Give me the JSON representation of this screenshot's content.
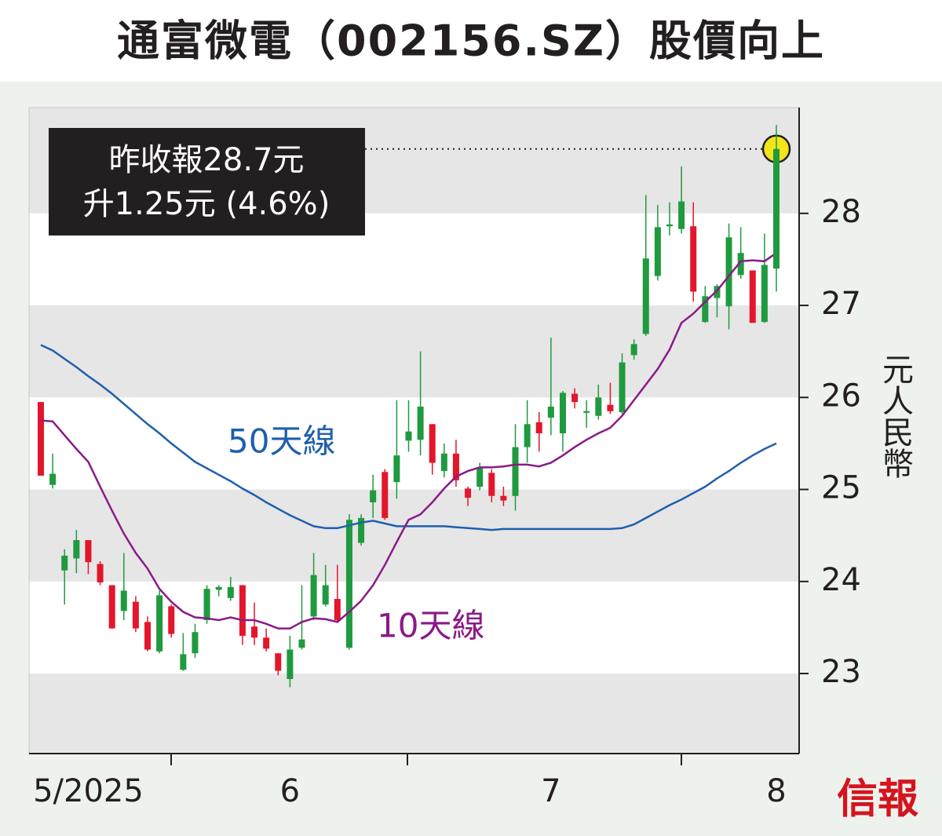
{
  "chart_data": {
    "type": "candlestick",
    "title": "通富微電（002156.SZ）股價向上",
    "annotation": [
      "昨收報28.7元",
      "升1.25元 (4.6%)"
    ],
    "ylabel": "元人民幣",
    "source": "信報",
    "categories": [
      null,
      null,
      null,
      null,
      "5/2025",
      null,
      null,
      null,
      null,
      null,
      null,
      null,
      null,
      null,
      null,
      null,
      null,
      null,
      null,
      null,
      null,
      "6",
      null,
      null,
      null,
      null,
      null,
      null,
      null,
      null,
      null,
      null,
      null,
      null,
      null,
      null,
      null,
      null,
      null,
      null,
      null,
      null,
      null,
      "7",
      null,
      null,
      null,
      null,
      null,
      null,
      null,
      null,
      null,
      null,
      null,
      null,
      null,
      null,
      null,
      null,
      null,
      null,
      "8"
    ],
    "open": [
      25.95,
      25.05,
      24.12,
      24.25,
      24.45,
      24.19,
      23.96,
      23.68,
      23.78,
      23.56,
      23.24,
      23.73,
      23.04,
      23.22,
      23.58,
      23.91,
      23.82,
      23.96,
      23.51,
      23.39,
      23.22,
      22.94,
      23.28,
      23.62,
      23.75,
      23.81,
      23.28,
      24.42,
      24.86,
      25.19,
      25.08,
      25.53,
      25.54,
      25.71,
      25.2,
      25.39,
      25.01,
      25.03,
      25.18,
      24.93,
      24.93,
      25.46,
      25.73,
      25.78,
      25.61,
      26.04,
      25.84,
      25.8,
      25.92,
      25.84,
      26.46,
      26.69,
      27.32,
      27.86,
      27.83,
      27.86,
      26.82,
      27.08,
      26.99,
      27.33,
      27.38,
      26.82,
      27.4
    ],
    "high": [
      25.95,
      25.39,
      24.35,
      24.56,
      24.45,
      24.22,
      23.96,
      24.31,
      23.84,
      23.62,
      23.9,
      23.75,
      23.44,
      23.54,
      23.96,
      23.96,
      24.05,
      23.96,
      23.77,
      23.49,
      23.22,
      23.41,
      23.96,
      24.31,
      24.18,
      24.18,
      24.73,
      24.73,
      25.16,
      25.22,
      25.97,
      25.97,
      26.5,
      25.71,
      25.5,
      25.54,
      25.03,
      25.29,
      25.22,
      25.03,
      25.71,
      25.97,
      25.84,
      26.65,
      26.07,
      26.1,
      25.97,
      26.14,
      26.16,
      26.48,
      26.63,
      28.2,
      28.09,
      28.12,
      28.51,
      28.12,
      27.21,
      27.23,
      27.89,
      27.85,
      27.38,
      27.78,
      28.96
    ],
    "low": [
      25.15,
      25.01,
      23.75,
      24.09,
      24.08,
      23.96,
      23.49,
      23.58,
      23.45,
      23.24,
      23.22,
      23.39,
      23.03,
      23.17,
      23.54,
      23.84,
      23.79,
      23.31,
      23.31,
      23.24,
      22.98,
      22.85,
      23.26,
      23.58,
      23.73,
      23.56,
      23.26,
      24.39,
      24.69,
      24.67,
      24.9,
      25.41,
      25.37,
      25.16,
      25.13,
      25.03,
      24.82,
      24.99,
      24.86,
      24.82,
      24.77,
      25.29,
      25.41,
      25.59,
      25.41,
      25.88,
      25.67,
      25.76,
      25.82,
      25.82,
      26.41,
      26.67,
      27.27,
      27.76,
      27.78,
      27.04,
      26.81,
      26.87,
      26.74,
      27.29,
      26.81,
      26.81,
      27.15
    ],
    "close": [
      25.15,
      25.17,
      24.28,
      24.45,
      24.21,
      23.99,
      23.49,
      23.9,
      23.49,
      23.26,
      23.85,
      23.43,
      23.21,
      23.45,
      23.92,
      23.94,
      23.94,
      23.41,
      23.39,
      23.27,
      23.03,
      23.26,
      23.37,
      24.07,
      23.96,
      23.58,
      24.67,
      24.69,
      24.99,
      24.69,
      25.37,
      25.63,
      25.9,
      25.29,
      25.39,
      25.1,
      24.91,
      25.24,
      24.93,
      24.88,
      25.46,
      25.71,
      25.61,
      25.9,
      26.05,
      25.95,
      25.85,
      26.0,
      25.85,
      26.38,
      26.58,
      27.51,
      27.85,
      27.88,
      28.13,
      27.15,
      27.1,
      27.21,
      27.74,
      27.57,
      26.81,
      27.44,
      28.7
    ],
    "up_color": "#1f9a3e",
    "down_color": "#e3162b",
    "highlight_color": "#f2e51c",
    "lines": [
      {
        "name": "50天線",
        "color": "#1f5fad",
        "values": [
          26.57,
          26.51,
          26.42,
          26.33,
          26.23,
          26.14,
          26.04,
          25.93,
          25.82,
          25.71,
          25.61,
          25.5,
          25.4,
          25.3,
          25.23,
          25.16,
          25.09,
          25.01,
          24.94,
          24.86,
          24.79,
          24.72,
          24.66,
          24.6,
          24.58,
          24.58,
          24.61,
          24.64,
          24.66,
          24.63,
          24.6,
          24.6,
          24.6,
          24.6,
          24.6,
          24.59,
          24.58,
          24.57,
          24.56,
          24.57,
          24.57,
          24.57,
          24.57,
          24.57,
          24.57,
          24.57,
          24.57,
          24.57,
          24.57,
          24.58,
          24.62,
          24.69,
          24.76,
          24.83,
          24.89,
          24.96,
          25.03,
          25.12,
          25.2,
          25.29,
          25.37,
          25.44,
          25.5
        ]
      },
      {
        "name": "10天線",
        "color": "#8b1a87",
        "values": [
          25.75,
          25.74,
          25.59,
          25.44,
          25.3,
          25.03,
          24.77,
          24.52,
          24.31,
          24.14,
          23.92,
          23.78,
          23.67,
          23.61,
          23.6,
          23.58,
          23.61,
          23.58,
          23.58,
          23.54,
          23.49,
          23.49,
          23.56,
          23.6,
          23.59,
          23.56,
          23.67,
          23.79,
          23.96,
          24.18,
          24.43,
          24.67,
          24.73,
          24.86,
          25.01,
          25.14,
          25.2,
          25.24,
          25.24,
          25.25,
          25.27,
          25.27,
          25.25,
          25.29,
          25.37,
          25.46,
          25.54,
          25.61,
          25.67,
          25.8,
          25.97,
          26.14,
          26.31,
          26.52,
          26.81,
          26.91,
          27.04,
          27.16,
          27.32,
          27.48,
          27.49,
          27.48,
          27.57
        ]
      }
    ],
    "ylim": [
      22.13,
      29.15
    ],
    "yticks": [
      23,
      24,
      25,
      26,
      27,
      28
    ],
    "grid": true
  }
}
